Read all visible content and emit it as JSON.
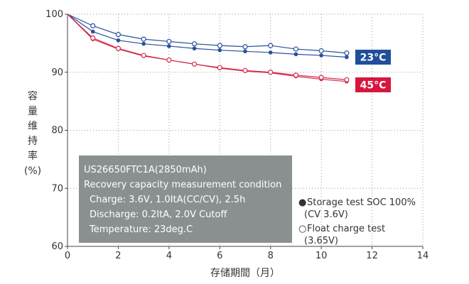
{
  "chart_data": {
    "type": "line",
    "xlabel": "存储期間（月）",
    "ylabel": [
      "容",
      "量",
      "维",
      "持",
      "率",
      "(%)"
    ],
    "xlim": [
      0,
      14
    ],
    "ylim": [
      60,
      100
    ],
    "xticks": [
      0,
      2,
      4,
      6,
      8,
      10,
      12,
      14
    ],
    "yticks": [
      60,
      70,
      80,
      90,
      100
    ],
    "grid": "dotted",
    "series": [
      {
        "name": "23°C",
        "marker": "filled",
        "color": "#2a4f9c",
        "x": [
          0,
          1,
          2,
          3,
          4,
          5,
          6,
          7,
          8,
          9,
          10,
          11
        ],
        "y": [
          100,
          97.0,
          95.5,
          94.9,
          94.5,
          94.1,
          93.8,
          93.6,
          93.4,
          93.1,
          92.9,
          92.6
        ]
      },
      {
        "name": "23°C",
        "marker": "open",
        "color": "#2a4f9c",
        "x": [
          0,
          1,
          2,
          3,
          4,
          5,
          6,
          7,
          8,
          9,
          10,
          11
        ],
        "y": [
          100,
          98.0,
          96.5,
          95.7,
          95.3,
          94.9,
          94.6,
          94.4,
          94.6,
          94.0,
          93.7,
          93.3
        ]
      },
      {
        "name": "45°C",
        "marker": "filled",
        "color": "#d42a4a",
        "x": [
          0,
          1,
          2,
          3,
          4,
          5,
          6,
          7,
          8,
          9,
          10,
          11
        ],
        "y": [
          100,
          95.7,
          94.0,
          92.8,
          92.1,
          91.4,
          90.7,
          90.2,
          89.9,
          89.3,
          88.8,
          88.4
        ]
      },
      {
        "name": "45°C",
        "marker": "open",
        "color": "#d42a4a",
        "x": [
          0,
          1,
          2,
          3,
          4,
          5,
          6,
          7,
          8,
          9,
          10,
          11
        ],
        "y": [
          100,
          95.9,
          94.1,
          92.9,
          92.1,
          91.4,
          90.8,
          90.3,
          90.0,
          89.5,
          89.1,
          88.7
        ]
      }
    ],
    "badges": [
      {
        "label": "23°C",
        "color": "#1f4e9b"
      },
      {
        "label": "45°C",
        "color": "#d6163f"
      }
    ],
    "info_box": {
      "color": "#8a9090",
      "lines": [
        "US26650FTC1A(2850mAh)",
        "Recovery capacity measurement condition",
        "  Charge: 3.6V, 1.0ItA(CC/CV), 2.5h",
        "  Discharge: 0.2ItA, 2.0V Cutoff",
        "  Temperature: 23deg.C"
      ]
    },
    "legend": [
      {
        "symbol": "●",
        "lines": [
          "Storage test SOC 100%",
          "(CV 3.6V)"
        ]
      },
      {
        "symbol": "○",
        "lines": [
          "Float charge test",
          "(3.65V)"
        ]
      }
    ]
  }
}
